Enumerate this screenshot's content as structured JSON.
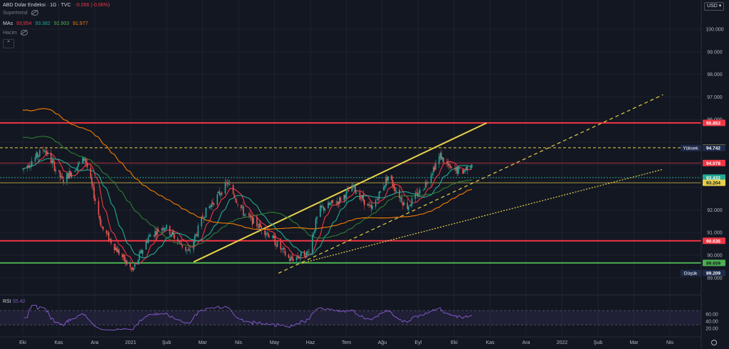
{
  "header": {
    "symbol": "ABD Dolar Endeksi · 1G · TVC",
    "change": "-0.056 (-0.06%)",
    "supertrend_label": "Supertrend",
    "mas_label": "MAs",
    "ma_values": [
      "93.954",
      "93.382",
      "92.903",
      "91.977"
    ],
    "volume_label": "Hacim",
    "collapse_icon": "chevron-up-icon"
  },
  "currency_button": "USD ▾",
  "colors": {
    "background": "#131722",
    "candle_up": "#26a69a",
    "candle_down": "#ef5350",
    "ma1": "#f23645",
    "ma2": "#22ab94",
    "ma3": "#2e7d32",
    "ma4": "#f57c00",
    "trendline": "#e6d04a",
    "rsi": "#7e57c2",
    "red_level": "#f23645",
    "green_level": "#4caf50"
  },
  "chart_data": {
    "type": "candlestick",
    "x_axis": [
      "Eki",
      "Kas",
      "Ara",
      "2021",
      "Şub",
      "Mar",
      "Nis",
      "May",
      "Haz",
      "Tem",
      "Ağu",
      "Eyl",
      "Eki",
      "Kas",
      "Ara",
      "2022",
      "Şub",
      "Mar",
      "Nis"
    ],
    "y_ticks": [
      "100.000",
      "99.000",
      "98.000",
      "97.000",
      "96.000",
      "92.000",
      "91.000",
      "90.000",
      "89.000"
    ],
    "y_range": [
      88.7,
      101.2
    ],
    "price_path": [
      {
        "date": "2020-10",
        "value": 93.8
      },
      {
        "date": "2020-10-20",
        "value": 94.7
      },
      {
        "date": "2020-11-05",
        "value": 93.3
      },
      {
        "date": "2020-11-25",
        "value": 94.3
      },
      {
        "date": "2020-12-10",
        "value": 91.2
      },
      {
        "date": "2020-12-25",
        "value": 90.1
      },
      {
        "date": "2021-01-06",
        "value": 89.3
      },
      {
        "date": "2021-01-20",
        "value": 90.8
      },
      {
        "date": "2021-02-03",
        "value": 91.3
      },
      {
        "date": "2021-02-25",
        "value": 90.1
      },
      {
        "date": "2021-03-10",
        "value": 91.8
      },
      {
        "date": "2021-03-31",
        "value": 93.2
      },
      {
        "date": "2021-04-15",
        "value": 91.8
      },
      {
        "date": "2021-05-05",
        "value": 91.0
      },
      {
        "date": "2021-05-25",
        "value": 89.8
      },
      {
        "date": "2021-06-10",
        "value": 90.1
      },
      {
        "date": "2021-06-20",
        "value": 92.0
      },
      {
        "date": "2021-07-07",
        "value": 92.4
      },
      {
        "date": "2021-07-20",
        "value": 93.0
      },
      {
        "date": "2021-08-05",
        "value": 92.0
      },
      {
        "date": "2021-08-20",
        "value": 93.5
      },
      {
        "date": "2021-09-05",
        "value": 92.1
      },
      {
        "date": "2021-09-20",
        "value": 93.0
      },
      {
        "date": "2021-10-05",
        "value": 94.4
      },
      {
        "date": "2021-10-14",
        "value": 93.8
      },
      {
        "date": "2021-10-25",
        "value": 93.7
      },
      {
        "date": "2021-11-02",
        "value": 94.1
      }
    ],
    "moving_averages": [
      {
        "name": "MA 1",
        "value": 93.954
      },
      {
        "name": "MA 2",
        "value": 93.382
      },
      {
        "name": "MA 3",
        "value": 92.903
      },
      {
        "name": "MA 4",
        "value": 91.977
      }
    ],
    "horizontal_levels": [
      {
        "value": 95.853,
        "color": "#f23645",
        "style": "solid",
        "label": "95.853"
      },
      {
        "value": 94.754,
        "color": "#e6d04a",
        "style": "dashed",
        "label": "94.754"
      },
      {
        "value": 94.742,
        "label": "94.742",
        "tag": "Yüksek"
      },
      {
        "value": 94.078,
        "color": "#f23645",
        "style": "thin",
        "label": "94.078"
      },
      {
        "value": 93.432,
        "color": "#22ab94",
        "style": "dotted",
        "label": "93.432"
      },
      {
        "value": 93.204,
        "color": "#e6d04a",
        "style": "thin",
        "label": "93.204"
      },
      {
        "value": 90.635,
        "color": "#f23645",
        "style": "solid",
        "label": "90.635"
      },
      {
        "value": 89.659,
        "color": "#4caf50",
        "style": "solid",
        "label": "89.659"
      },
      {
        "value": 89.209,
        "label": "89.209",
        "tag": "Düşük"
      }
    ],
    "trendlines": [
      {
        "from": [
          "2021-03-01",
          89.7
        ],
        "to": [
          "2021-11-15",
          95.85
        ],
        "style": "solid"
      },
      {
        "from": [
          "2021-05-15",
          89.2
        ],
        "to": [
          "2022-04-20",
          97.1
        ],
        "style": "dashed"
      },
      {
        "from": [
          "2021-06-05",
          89.65
        ],
        "to": [
          "2022-04-20",
          93.8
        ],
        "style": "dotted"
      }
    ],
    "rsi": {
      "label": "RSI",
      "value": "55.42",
      "ticks": [
        "60.00",
        "40.00",
        "20.00"
      ],
      "upper": 70,
      "lower": 30
    }
  }
}
